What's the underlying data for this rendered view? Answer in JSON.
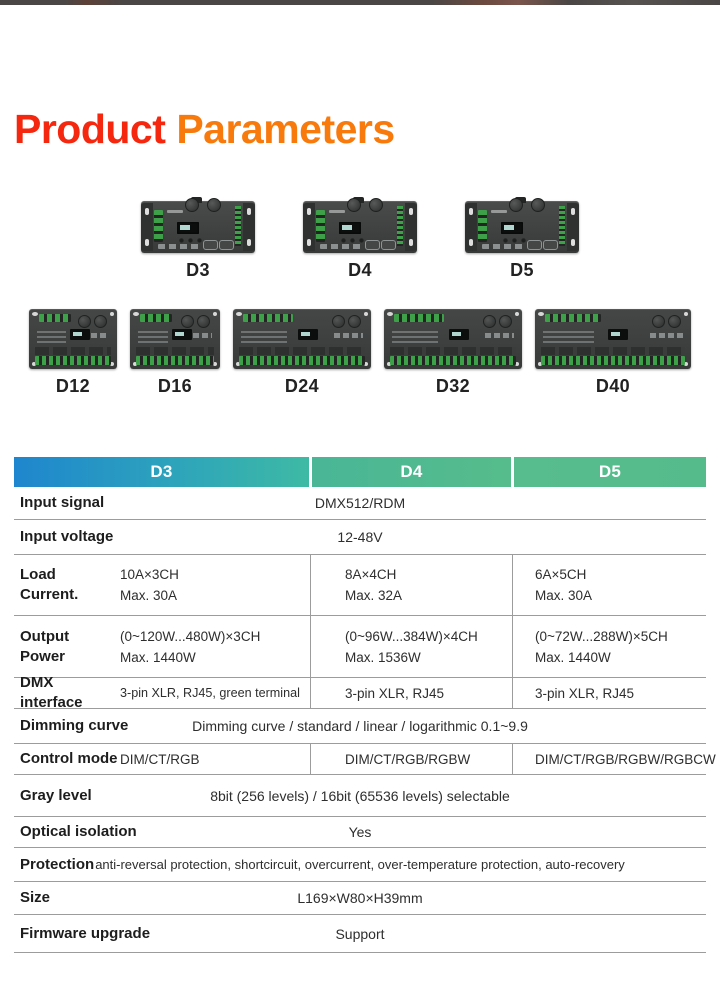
{
  "header": {
    "title_primary": "Product",
    "title_secondary": "Parameters"
  },
  "products": {
    "small": [
      {
        "label": "D3"
      },
      {
        "label": "D4"
      },
      {
        "label": "D5"
      }
    ],
    "large": [
      {
        "label": "D12"
      },
      {
        "label": "D16"
      },
      {
        "label": "D24"
      },
      {
        "label": "D32"
      },
      {
        "label": "D40"
      }
    ]
  },
  "table": {
    "columns": {
      "c1": "D3",
      "c2": "D4",
      "c3": "D5"
    },
    "rows": {
      "input_signal": {
        "label": "Input signal",
        "value": "DMX512/RDM"
      },
      "input_voltage": {
        "label": "Input voltage",
        "value": "12-48V"
      },
      "load_current": {
        "label_l1": "Load",
        "label_l2": "Current.",
        "d3_l1": "10A×3CH",
        "d3_l2": "Max. 30A",
        "d4_l1": "8A×4CH",
        "d4_l2": "Max. 32A",
        "d5_l1": "6A×5CH",
        "d5_l2": "Max. 30A"
      },
      "output_power": {
        "label_l1": "Output",
        "label_l2": "Power",
        "d3_l1": "(0~120W...480W)×3CH",
        "d3_l2": "Max. 1440W",
        "d4_l1": "(0~96W...384W)×4CH",
        "d4_l2": "Max. 1536W",
        "d5_l1": "(0~72W...288W)×5CH",
        "d5_l2": "Max. 1440W"
      },
      "dmx_interface": {
        "label": "DMX interface",
        "d3": "3-pin XLR, RJ45, green terminal",
        "d4": "3-pin XLR, RJ45",
        "d5": "3-pin XLR, RJ45"
      },
      "dimming_curve": {
        "label": "Dimming curve",
        "value": "Dimming curve / standard / linear / logarithmic 0.1~9.9"
      },
      "control_mode": {
        "label": "Control mode",
        "d3": "DIM/CT/RGB",
        "d4": "DIM/CT/RGB/RGBW",
        "d5": "DIM/CT/RGB/RGBW/RGBCW"
      },
      "gray_level": {
        "label": "Gray level",
        "value": "8bit (256 levels) / 16bit (65536 levels) selectable"
      },
      "optical_isolation": {
        "label": "Optical isolation",
        "value": "Yes"
      },
      "protection": {
        "label": "Protection",
        "value": "anti-reversal protection, shortcircuit, overcurrent, over-temperature protection, auto-recovery"
      },
      "size": {
        "label": "Size",
        "value": "L169×W80×H39mm"
      },
      "firmware_upgrade": {
        "label": "Firmware upgrade",
        "value": "Support"
      }
    }
  },
  "colors": {
    "title_red": "#f5270f",
    "title_orange": "#f97a0c",
    "header_d3_gradient": [
      "#1e86ce",
      "#3ebaa4"
    ],
    "header_d4_gradient": [
      "#49b696",
      "#56bc8b"
    ],
    "header_d5": "#57bc8d",
    "device_body": "#3b3d3d",
    "terminal_green": "#3fa04a"
  }
}
